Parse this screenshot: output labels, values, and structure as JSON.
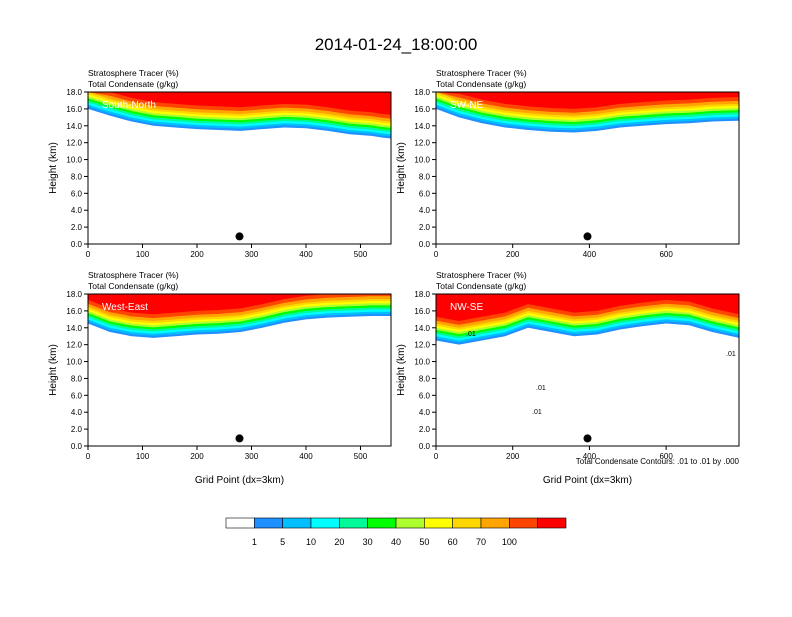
{
  "figure": {
    "title": "2014-01-24_18:00:00",
    "contour_note": "Total Condensate Contours: .01 to .01 by .000",
    "field1_label": "Stratosphere Tracer   (%)",
    "field2_label": "Total Condensate   (g/kg)"
  },
  "colorbar": {
    "colors": [
      "#ffffff",
      "#1e90ff",
      "#00bfff",
      "#00ffff",
      "#00fa9a",
      "#00ff00",
      "#adff2f",
      "#ffff00",
      "#ffd700",
      "#ffa500",
      "#ff4500",
      "#ff0000"
    ],
    "labels": [
      "1",
      "5",
      "10",
      "20",
      "30",
      "40",
      "50",
      "60",
      "70",
      "100"
    ]
  },
  "chart_data": [
    {
      "type": "heatmap",
      "panel": "South-North",
      "xlabel": "",
      "ylabel": "Height (km)",
      "xlim": [
        0,
        556
      ],
      "ylim": [
        0,
        18
      ],
      "xticks": [
        "0",
        "100",
        "200",
        "300",
        "400",
        "500"
      ],
      "yticks": [
        "0.0",
        "2.0",
        "4.0",
        "6.0",
        "8.0",
        "10.0",
        "12.0",
        "14.0",
        "16.0",
        "18.0"
      ],
      "marker_x": 278,
      "x": [
        0,
        40,
        80,
        120,
        160,
        200,
        240,
        280,
        320,
        360,
        400,
        440,
        480,
        520,
        540,
        556
      ],
      "tracer_base_km": [
        16.0,
        15.2,
        14.5,
        14.0,
        13.8,
        13.6,
        13.5,
        13.4,
        13.6,
        13.8,
        13.7,
        13.4,
        13.0,
        12.8,
        12.6,
        12.5
      ],
      "contour_labels": []
    },
    {
      "type": "heatmap",
      "panel": "SW-NE",
      "xlabel": "",
      "ylabel": "Height (km)",
      "xlim": [
        0,
        790
      ],
      "ylim": [
        0,
        18
      ],
      "xticks": [
        "0",
        "200",
        "400",
        "600"
      ],
      "yticks": [
        "0.0",
        "2.0",
        "4.0",
        "6.0",
        "8.0",
        "10.0",
        "12.0",
        "14.0",
        "16.0",
        "18.0"
      ],
      "marker_x": 395,
      "x": [
        0,
        60,
        120,
        180,
        240,
        300,
        360,
        420,
        480,
        540,
        600,
        660,
        720,
        790
      ],
      "tracer_base_km": [
        16.0,
        15.0,
        14.3,
        13.8,
        13.5,
        13.3,
        13.2,
        13.4,
        13.8,
        14.0,
        14.2,
        14.3,
        14.5,
        14.6
      ],
      "contour_labels": []
    },
    {
      "type": "heatmap",
      "panel": "West-East",
      "xlabel": "Grid Point (dx=3km)",
      "ylabel": "Height (km)",
      "xlim": [
        0,
        556
      ],
      "ylim": [
        0,
        18
      ],
      "xticks": [
        "0",
        "100",
        "200",
        "300",
        "400",
        "500"
      ],
      "yticks": [
        "0.0",
        "2.0",
        "4.0",
        "6.0",
        "8.0",
        "10.0",
        "12.0",
        "14.0",
        "16.0",
        "18.0"
      ],
      "marker_x": 278,
      "x": [
        0,
        40,
        80,
        120,
        160,
        200,
        240,
        280,
        320,
        360,
        400,
        440,
        480,
        520,
        556
      ],
      "tracer_base_km": [
        14.5,
        13.5,
        13.0,
        12.8,
        13.0,
        13.2,
        13.3,
        13.5,
        14.0,
        14.6,
        15.0,
        15.2,
        15.3,
        15.4,
        15.4
      ],
      "contour_labels": []
    },
    {
      "type": "heatmap",
      "panel": "NW-SE",
      "xlabel": "Grid Point (dx=3km)",
      "ylabel": "Height (km)",
      "xlim": [
        0,
        790
      ],
      "ylim": [
        0,
        18
      ],
      "xticks": [
        "0",
        "200",
        "400",
        "600"
      ],
      "yticks": [
        "0.0",
        "2.0",
        "4.0",
        "6.0",
        "8.0",
        "10.0",
        "12.0",
        "14.0",
        "16.0",
        "18.0"
      ],
      "marker_x": 395,
      "x": [
        0,
        60,
        120,
        180,
        240,
        300,
        360,
        420,
        480,
        540,
        600,
        660,
        720,
        790
      ],
      "tracer_base_km": [
        12.5,
        12.0,
        12.5,
        13.0,
        14.0,
        13.5,
        13.0,
        13.2,
        13.8,
        14.2,
        14.5,
        14.3,
        13.5,
        12.8
      ],
      "contour_labels": [
        ".01",
        ".01",
        ".01",
        ".01"
      ]
    }
  ]
}
